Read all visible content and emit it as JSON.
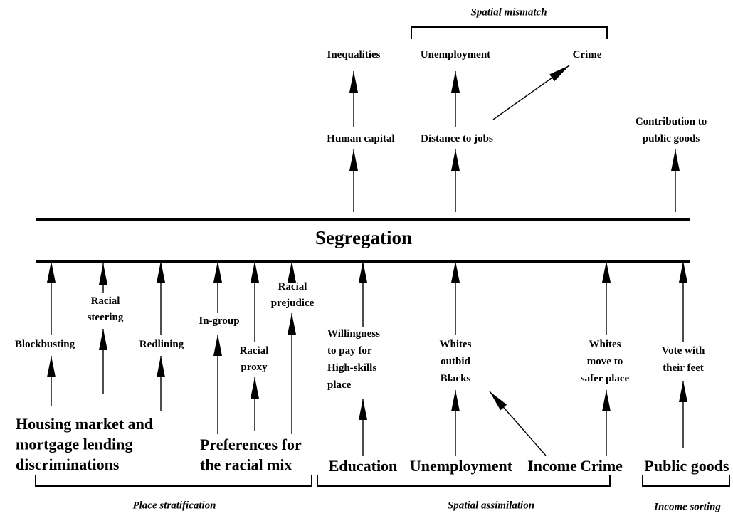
{
  "nodes": [
    {
      "lines": [
        "Inequalities"
      ]
    },
    {
      "lines": [
        "Unemployment"
      ]
    },
    {
      "lines": [
        "Crime"
      ]
    },
    {
      "lines": [
        "Human capital"
      ]
    },
    {
      "lines": [
        "Distance to jobs"
      ]
    },
    {
      "lines": [
        "Contribution to",
        "public goods"
      ]
    },
    {
      "lines": [
        "Segregation"
      ]
    },
    {
      "lines": [
        "Blockbusting"
      ]
    },
    {
      "lines": [
        "Racial",
        "steering"
      ]
    },
    {
      "lines": [
        "Redlining"
      ]
    },
    {
      "lines": [
        "In-group"
      ]
    },
    {
      "lines": [
        "Racial",
        "proxy"
      ]
    },
    {
      "lines": [
        "Racial",
        "prejudice"
      ]
    },
    {
      "lines": [
        "Willingness",
        "to pay for",
        "High-skills",
        "place"
      ]
    },
    {
      "lines": [
        "Whites",
        "outbid",
        "Blacks"
      ]
    },
    {
      "lines": [
        "Whites",
        "move to",
        "safer place"
      ]
    },
    {
      "lines": [
        "Vote with",
        "their feet"
      ]
    },
    {
      "lines": [
        "Housing market and",
        "mortgage lending",
        "discriminations"
      ]
    },
    {
      "lines": [
        "Preferences for",
        "the racial mix"
      ]
    },
    {
      "lines": [
        "Education"
      ]
    },
    {
      "lines": [
        "Unemployment"
      ]
    },
    {
      "lines": [
        "Income"
      ]
    },
    {
      "lines": [
        "Crime"
      ]
    },
    {
      "lines": [
        "Public goods"
      ]
    }
  ],
  "groups": [
    {
      "label": "Spatial mismatch"
    },
    {
      "label": "Place stratification"
    },
    {
      "label": "Spatial assimilation"
    },
    {
      "label": "Income sorting"
    }
  ]
}
